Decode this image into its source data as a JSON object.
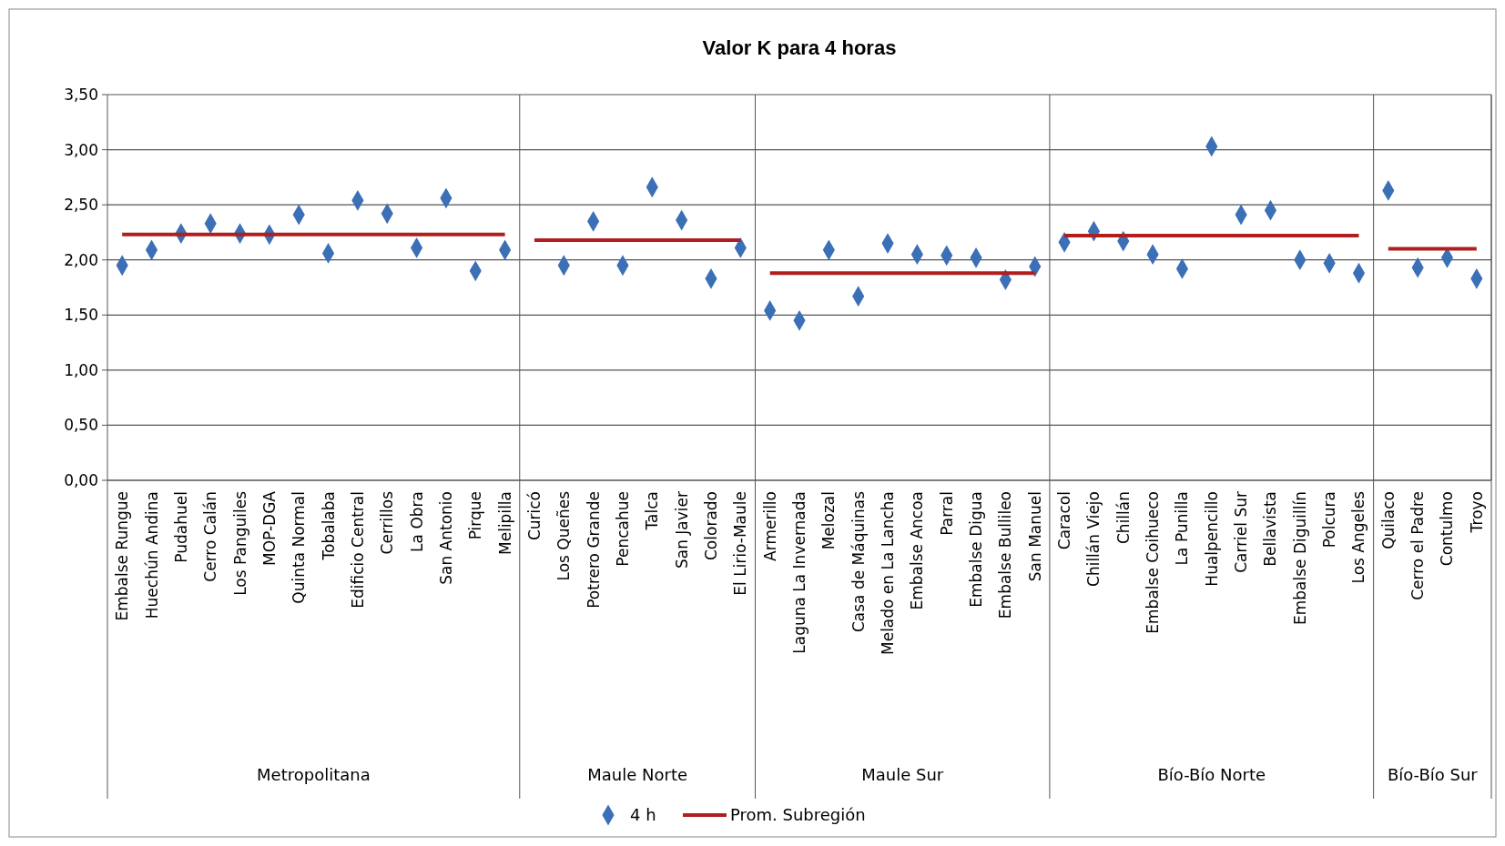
{
  "chart_data": {
    "type": "scatter",
    "title": "Valor K para 4 horas",
    "categories": [
      "Embalse Rungue",
      "Huechún Andina",
      "Pudahuel",
      "Cerro Calán",
      "Los Panguiles",
      "MOP-DGA",
      "Quinta Normal",
      "Tobalaba",
      "Edificio Central",
      "Cerrillos",
      "La Obra",
      "San Antonio",
      "Pirque",
      "Melipilla",
      "Curicó",
      "Los Queñes",
      "Potrero Grande",
      "Pencahue",
      "Talca",
      "San Javier",
      "Colorado",
      "El Lirio-Maule",
      "Armerillo",
      "Laguna La Invernada",
      "Melozal",
      "Casa de Máquinas",
      "Melado en La Lancha",
      "Embalse Ancoa",
      "Parral",
      "Embalse Digua",
      "Embalse Bullileo",
      "San Manuel",
      "Caracol",
      "Chillán Viejo",
      "Chillán",
      "Embalse Coihueco",
      "La Punilla",
      "Hualpencillo",
      "Carriel Sur",
      "Bellavista",
      "Embalse Diguillín",
      "Polcura",
      "Los Angeles",
      "Quilaco",
      "Cerro el Padre",
      "Contulmo",
      "Troyo"
    ],
    "series": [
      {
        "name": "4 h",
        "marker": "diamond",
        "color": "#3b6fb6",
        "values": [
          1.95,
          2.09,
          2.24,
          2.33,
          2.24,
          2.23,
          2.41,
          2.06,
          2.54,
          2.42,
          2.11,
          2.56,
          1.9,
          2.09,
          null,
          1.95,
          2.35,
          1.95,
          2.66,
          2.36,
          1.83,
          2.11,
          1.54,
          1.45,
          2.09,
          1.67,
          2.15,
          2.05,
          2.04,
          2.02,
          1.82,
          1.94,
          2.16,
          2.26,
          2.17,
          2.05,
          1.92,
          3.03,
          2.41,
          2.45,
          2.0,
          1.97,
          1.88,
          2.63,
          1.93,
          2.02,
          1.83
        ]
      },
      {
        "name": "Prom. Subregión",
        "type": "line",
        "line_style": "solid",
        "color": "#b01e1e",
        "values": [
          2.23,
          2.23,
          2.23,
          2.23,
          2.23,
          2.23,
          2.23,
          2.23,
          2.23,
          2.23,
          2.23,
          2.23,
          2.23,
          2.23,
          2.18,
          2.18,
          2.18,
          2.18,
          2.18,
          2.18,
          2.18,
          2.18,
          1.88,
          1.88,
          1.88,
          1.88,
          1.88,
          1.88,
          1.88,
          1.88,
          1.88,
          1.88,
          2.22,
          2.22,
          2.22,
          2.22,
          2.22,
          2.22,
          2.22,
          2.22,
          2.22,
          2.22,
          2.22,
          2.1,
          2.1,
          2.1,
          2.1
        ]
      }
    ],
    "annotations": [
      "Metropolitana",
      "Maule Norte",
      "Maule Sur",
      "Bío-Bío Norte",
      "Bío-Bío Sur"
    ],
    "ylim": [
      0,
      3.5
    ],
    "yticks": [
      {
        "value": 0,
        "label": "0,00"
      },
      {
        "value": 0.5,
        "label": "0,50"
      },
      {
        "value": 1,
        "label": "1,00"
      },
      {
        "value": 1.5,
        "label": "1,50"
      },
      {
        "value": 2,
        "label": "2,00"
      },
      {
        "value": 2.5,
        "label": "2,50"
      },
      {
        "value": 3,
        "label": "3,00"
      },
      {
        "value": 3.5,
        "label": "3,50"
      }
    ],
    "grid": "y",
    "legend": "bottom"
  }
}
